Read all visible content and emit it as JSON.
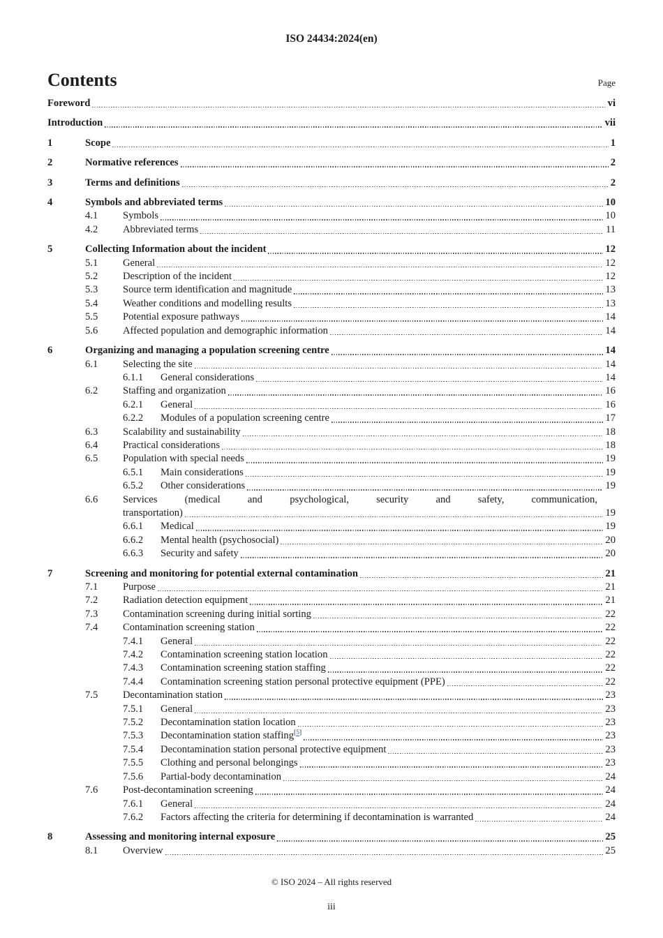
{
  "header": {
    "doc_id": "ISO 24434:2024(en)"
  },
  "contents": {
    "title": "Contents",
    "page_label": "Page"
  },
  "toc": {
    "entries": [
      {
        "num": "",
        "title": "Foreword",
        "page": "vi",
        "level": 1,
        "bold": true
      },
      {
        "num": "",
        "title": "Introduction",
        "page": "vii",
        "level": 1,
        "bold": true
      },
      {
        "num": "1",
        "title": "Scope",
        "page": "1",
        "level": 1,
        "bold": true
      },
      {
        "num": "2",
        "title": "Normative references",
        "page": "2",
        "level": 1,
        "bold": true
      },
      {
        "num": "3",
        "title": "Terms and definitions",
        "page": "2",
        "level": 1,
        "bold": true
      },
      {
        "num": "4",
        "title": "Symbols and abbreviated terms",
        "page": "10",
        "level": 1,
        "bold": true
      },
      {
        "num": "4.1",
        "title": "Symbols",
        "page": "10",
        "level": 2
      },
      {
        "num": "4.2",
        "title": "Abbreviated terms",
        "page": "11",
        "level": 2
      },
      {
        "num": "5",
        "title": "Collecting Information about the incident",
        "page": "12",
        "level": 1,
        "bold": true
      },
      {
        "num": "5.1",
        "title": "General",
        "page": "12",
        "level": 2
      },
      {
        "num": "5.2",
        "title": "Description of the incident",
        "page": "12",
        "level": 2
      },
      {
        "num": "5.3",
        "title": "Source term identification and magnitude",
        "page": "13",
        "level": 2
      },
      {
        "num": "5.4",
        "title": "Weather conditions and modelling results",
        "page": "13",
        "level": 2
      },
      {
        "num": "5.5",
        "title": "Potential exposure pathways",
        "page": "14",
        "level": 2
      },
      {
        "num": "5.6",
        "title": "Affected population and demographic information",
        "page": "14",
        "level": 2
      },
      {
        "num": "6",
        "title": "Organizing and managing a population screening centre",
        "page": "14",
        "level": 1,
        "bold": true
      },
      {
        "num": "6.1",
        "title": "Selecting the site",
        "page": "14",
        "level": 2
      },
      {
        "num": "6.1.1",
        "title": "General considerations",
        "page": "14",
        "level": 3
      },
      {
        "num": "6.2",
        "title": "Staffing and organization",
        "page": "16",
        "level": 2
      },
      {
        "num": "6.2.1",
        "title": "General",
        "page": "16",
        "level": 3
      },
      {
        "num": "6.2.2",
        "title": "Modules of a population screening centre",
        "page": "17",
        "level": 3
      },
      {
        "num": "6.3",
        "title": "Scalability and sustainability",
        "page": "18",
        "level": 2
      },
      {
        "num": "6.4",
        "title": "Practical considerations",
        "page": "18",
        "level": 2
      },
      {
        "num": "6.5",
        "title": "Population with special needs",
        "page": "19",
        "level": 2
      },
      {
        "num": "6.5.1",
        "title": "Main considerations",
        "page": "19",
        "level": 3
      },
      {
        "num": "6.5.2",
        "title": "Other considerations",
        "page": "19",
        "level": 3
      },
      {
        "num": "6.6",
        "lines": [
          "Services (medical and psychological, security and safety, communication,",
          "transportation)"
        ],
        "page": "19",
        "level": 2
      },
      {
        "num": "6.6.1",
        "title": "Medical",
        "page": "19",
        "level": 3
      },
      {
        "num": "6.6.2",
        "title": "Mental health (psychosocial)",
        "page": "20",
        "level": 3
      },
      {
        "num": "6.6.3",
        "title": "Security and safety",
        "page": "20",
        "level": 3
      },
      {
        "num": "7",
        "title": "Screening and monitoring for potential external contamination",
        "page": "21",
        "level": 1,
        "bold": true
      },
      {
        "num": "7.1",
        "title": "Purpose",
        "page": "21",
        "level": 2
      },
      {
        "num": "7.2",
        "title": "Radiation detection equipment",
        "page": "21",
        "level": 2
      },
      {
        "num": "7.3",
        "title": "Contamination screening during initial sorting",
        "page": "22",
        "level": 2
      },
      {
        "num": "7.4",
        "title": "Contamination screening station",
        "page": "22",
        "level": 2
      },
      {
        "num": "7.4.1",
        "title": "General",
        "page": "22",
        "level": 3
      },
      {
        "num": "7.4.2",
        "title": "Contamination screening station location",
        "page": "22",
        "level": 3
      },
      {
        "num": "7.4.3",
        "title": "Contamination screening station staffing",
        "page": "22",
        "level": 3
      },
      {
        "num": "7.4.4",
        "title": "Contamination screening station personal protective equipment (PPE)",
        "page": "22",
        "level": 3
      },
      {
        "num": "7.5",
        "title": "Decontamination station",
        "page": "23",
        "level": 2
      },
      {
        "num": "7.5.1",
        "title": "General",
        "page": "23",
        "level": 3
      },
      {
        "num": "7.5.2",
        "title": "Decontamination station location",
        "page": "23",
        "level": 3
      },
      {
        "num": "7.5.3",
        "title": "Decontamination station staffing",
        "sup_open": "[",
        "sup_ref": "5",
        "sup_close": "]",
        "page": "23",
        "level": 3
      },
      {
        "num": "7.5.4",
        "title": "Decontamination station personal protective equipment",
        "page": "23",
        "level": 3
      },
      {
        "num": "7.5.5",
        "title": "Clothing and personal belongings",
        "page": "23",
        "level": 3
      },
      {
        "num": "7.5.6",
        "title": "Partial-body decontamination",
        "page": "24",
        "level": 3
      },
      {
        "num": "7.6",
        "title": "Post-decontamination screening",
        "page": "24",
        "level": 2
      },
      {
        "num": "7.6.1",
        "title": "General",
        "page": "24",
        "level": 3
      },
      {
        "num": "7.6.2",
        "title": "Factors affecting the criteria for determining if decontamination is warranted",
        "page": "24",
        "level": 3
      },
      {
        "num": "8",
        "title": "Assessing and monitoring internal exposure",
        "page": "25",
        "level": 1,
        "bold": true
      },
      {
        "num": "8.1",
        "title": "Overview",
        "page": "25",
        "level": 2
      }
    ]
  },
  "footer": {
    "copyright": "© ISO 2024 – All rights reserved",
    "page_number": "iii"
  },
  "colors": {
    "text": "#1c1c1c",
    "link": "#3a62b0",
    "leader_dots": "#3f3f3f"
  }
}
